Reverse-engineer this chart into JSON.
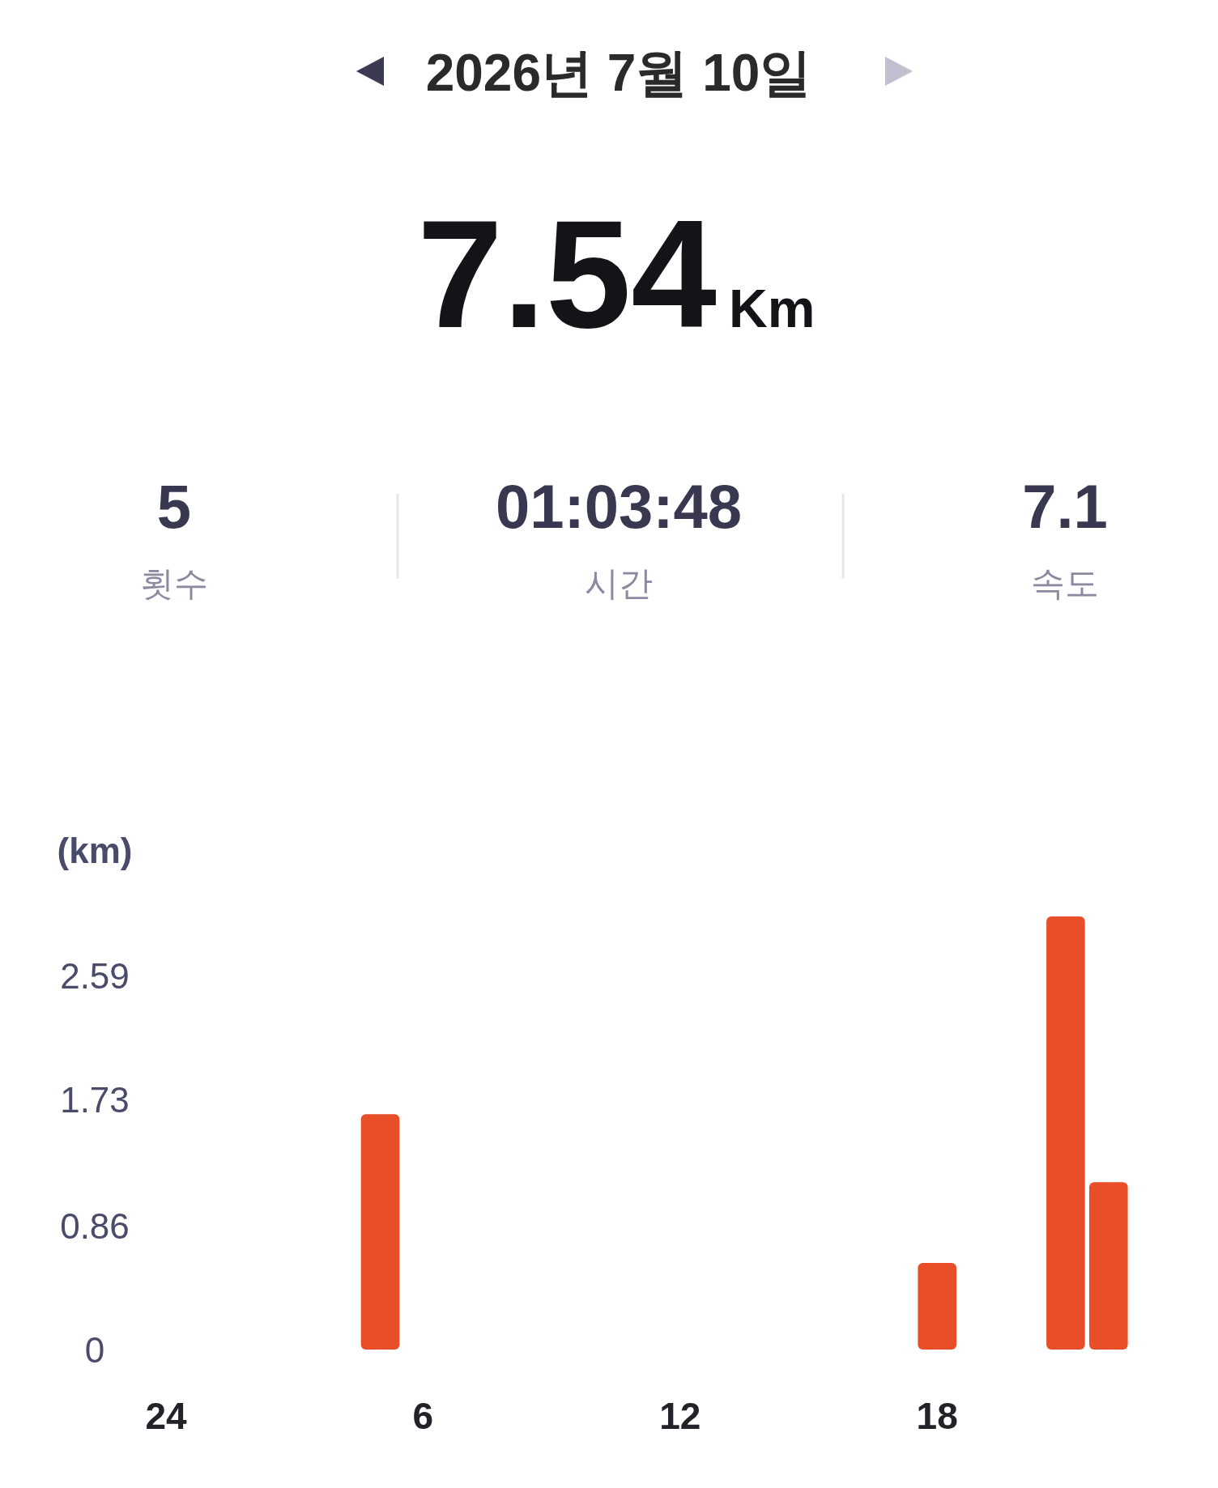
{
  "chart_data": {
    "type": "bar",
    "title": "2026년 7월 10일",
    "ylabel": "(km)",
    "annotations": [
      "7.54",
      "Km",
      "5",
      "횟수",
      "01:03:48",
      "시간",
      "7.1",
      "속도"
    ],
    "categories": [
      "24",
      null,
      null,
      null,
      null,
      null,
      "6",
      null,
      null,
      null,
      null,
      null,
      "12",
      null,
      null,
      null,
      null,
      null,
      "18",
      null,
      null,
      null,
      null,
      null
    ],
    "values": [
      null,
      null,
      null,
      null,
      null,
      1.63,
      null,
      null,
      null,
      null,
      null,
      null,
      null,
      null,
      null,
      null,
      null,
      null,
      0.6,
      null,
      null,
      3.0,
      1.16,
      null
    ],
    "color": "#e84e27",
    "ylim": [
      0,
      3.0
    ],
    "yticks": [
      0,
      0.86,
      1.73,
      2.59
    ]
  }
}
